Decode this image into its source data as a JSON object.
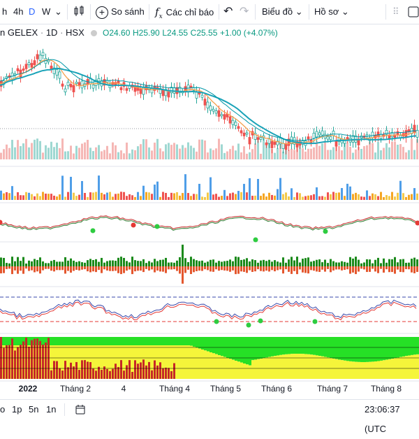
{
  "toolbar": {
    "intervals": [
      "h",
      "4h",
      "D",
      "W"
    ],
    "active_interval": "D",
    "compare_label": "So sánh",
    "indicators_label": "Các chỉ báo",
    "chart_type_label": "Biểu đồ",
    "profile_label": "Hồ sơ"
  },
  "legend": {
    "symbol_prefix": "n",
    "symbol": "GELEX",
    "interval": "1D",
    "exchange": "HSX",
    "open": "O24.60",
    "high": "H25.90",
    "low": "L24.55",
    "close": "C25.55",
    "change": "+1.00 (+4.07%)"
  },
  "xaxis": [
    "2022",
    "Tháng 2",
    "4",
    "Tháng 4",
    "Tháng 5",
    "Tháng 6",
    "Tháng 7",
    "Tháng 8"
  ],
  "bottombar": {
    "ranges": [
      "o",
      "1p",
      "5n",
      "1n"
    ],
    "time": "23:06:37 (UTC"
  },
  "colors": {
    "up": "#26a69a",
    "down": "#ef5350",
    "ma_fast": "#f6a14e",
    "ma_slow": "#1aa3b8",
    "accent": "#2962ff",
    "green_fill": "#26e026",
    "yellow_fill": "#f5f53a"
  }
}
